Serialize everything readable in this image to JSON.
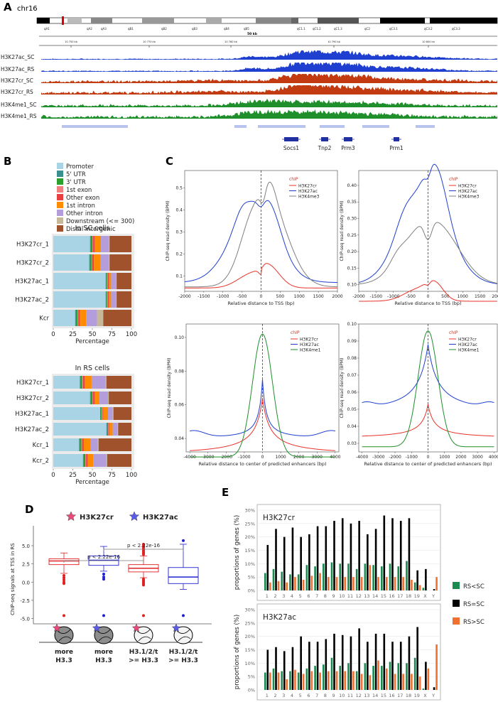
{
  "colors": {
    "blue": "#1f3fd0",
    "orange": "#c23b10",
    "green": "#1e8f2a",
    "gray": "#7f7f7f",
    "red": "#e8332a",
    "promoter": "#a8d4e6",
    "utr5": "#3a8f8f",
    "utr3": "#2ca02c",
    "exon1": "#f08080",
    "otherexon": "#e84040",
    "intron1": "#ff8c00",
    "otherintron": "#b39ddb",
    "downstream": "#c8b89a",
    "distal": "#a0522d",
    "rs_lt_sc": "#1a8a50",
    "rs_eq_sc": "#000000",
    "rs_gt_sc": "#f07030"
  },
  "panel_labels": {
    "a": "A",
    "b": "B",
    "c": "C",
    "d": "D",
    "e": "E"
  },
  "panel_a": {
    "chrom": "chr16",
    "bands": [
      "qA1",
      "qA2",
      "qA3",
      "qB1",
      "qB2",
      "qB3",
      "qB4",
      "qB5",
      "qC1.1",
      "qC1.2",
      "qC1.3",
      "qC2",
      "qC3.1",
      "qC3.2",
      "qC3.3"
    ],
    "scale": "50 kb",
    "ticks": [
      "10 750 kb",
      "10 770 kb",
      "10 780 kb",
      "10 790 kb",
      "10 800 kb"
    ],
    "tracks": [
      "H3K27ac_SC",
      "H3K27ac_RS",
      "H3K27cr_SC",
      "H3K27cr_RS",
      "H3K4me1_SC",
      "H3K4me1_RS"
    ],
    "genes": [
      "Socs1",
      "Tnp2",
      "Prm3",
      "Prm1"
    ]
  },
  "panel_b": {
    "legend": [
      "Promoter",
      "5' UTR",
      "3' UTR",
      "1st exon",
      "Other exon",
      "1st intron",
      "Other intron",
      "Downstream (<= 300)",
      "Distal intergenic"
    ],
    "sc": {
      "title": "In SC cells",
      "rows": [
        {
          "label": "H3K27cr_1",
          "values": [
            47,
            1,
            2,
            1,
            2,
            8,
            10,
            1,
            28
          ]
        },
        {
          "label": "H3K27cr_2",
          "values": [
            46,
            1,
            2,
            1,
            2,
            8,
            11,
            1,
            28
          ]
        },
        {
          "label": "H3K27ac_1",
          "values": [
            67,
            1,
            1,
            1,
            1,
            3,
            6,
            1,
            19
          ]
        },
        {
          "label": "H3K27ac_2",
          "values": [
            67,
            1,
            1,
            1,
            1,
            3,
            6,
            1,
            19
          ]
        },
        {
          "label": "Kcr",
          "values": [
            28,
            1,
            2,
            1,
            2,
            8,
            14,
            8,
            36
          ]
        }
      ],
      "xticks": [
        "0",
        "25",
        "50",
        "75",
        "100"
      ],
      "xlabel": "Percentage"
    },
    "rs": {
      "title": "In RS cells",
      "rows": [
        {
          "label": "H3K27cr_1",
          "values": [
            34,
            1,
            2,
            1,
            2,
            9,
            18,
            1,
            32
          ]
        },
        {
          "label": "H3K27cr_2",
          "values": [
            47,
            1,
            2,
            1,
            2,
            6,
            11,
            1,
            29
          ]
        },
        {
          "label": "H3K27ac_1",
          "values": [
            60,
            1,
            1,
            1,
            1,
            6,
            6,
            1,
            23
          ]
        },
        {
          "label": "H3K27ac_2",
          "values": [
            68,
            1,
            1,
            1,
            1,
            4,
            6,
            1,
            17
          ]
        },
        {
          "label": "Kcr_1",
          "values": [
            33,
            1,
            2,
            1,
            2,
            9,
            9,
            1,
            42
          ]
        },
        {
          "label": "Kcr_2",
          "values": [
            38,
            1,
            2,
            1,
            2,
            7,
            17,
            1,
            31
          ]
        }
      ],
      "xticks": [
        "0",
        "25",
        "50",
        "75",
        "100"
      ],
      "xlabel": "Percentage"
    }
  },
  "panel_c": {
    "ylabel": "ChIP-seq read density (BPM)",
    "legend_title": "chIP",
    "plots": [
      {
        "xlabel": "Relative distance to TSS (bp)",
        "xticks": [
          "-2000",
          "-1500",
          "-1000",
          "-500",
          "0",
          "500",
          "1000",
          "1500",
          "2000"
        ],
        "yticks": [
          "0.1",
          "0.2",
          "0.3",
          "0.4",
          "0.5"
        ],
        "legend": [
          "H3K27cr",
          "H3K27ac",
          "H3K4me3"
        ]
      },
      {
        "xlabel": "Relative distance to TSS (bp)",
        "xticks": [
          "-2000",
          "-1500",
          "-1000",
          "-500",
          "0",
          "500",
          "1000",
          "1500",
          "2000"
        ],
        "yticks": [
          "0.10",
          "0.15",
          "0.20",
          "0.25",
          "0.30",
          "0.35",
          "0.40"
        ],
        "legend": [
          "H3K27cr",
          "H3K27ac",
          "H3K4me3"
        ]
      },
      {
        "xlabel": "Relative distance to center of predicted enhancers (bp)",
        "xticks": [
          "-4000",
          "-3000",
          "-2000",
          "-1000",
          "0",
          "1000",
          "2000",
          "3000",
          "4000"
        ],
        "yticks": [
          "0.04",
          "0.06",
          "0.08",
          "0.10"
        ],
        "legend": [
          "H3K27cr",
          "H3K27ac",
          "H3K4me1"
        ]
      },
      {
        "xlabel": "Relative distance to center of predicted enhancers (bp)",
        "xticks": [
          "-4000",
          "-3000",
          "-2000",
          "-1000",
          "0",
          "1000",
          "2000",
          "3000",
          "4000"
        ],
        "yticks": [
          "0.03",
          "0.04",
          "0.05",
          "0.06",
          "0.07",
          "0.08",
          "0.09",
          "0.10"
        ],
        "legend": [
          "H3K27cr",
          "H3K27ac",
          "H3K4me1"
        ]
      }
    ]
  },
  "panel_d": {
    "legend": [
      "H3K27cr",
      "H3K27ac"
    ],
    "ylabel": "ChIP-seq signals at TSS in RS",
    "yticks": [
      "5.0",
      "2.5",
      "0.0",
      "-2.5",
      "-5.0"
    ],
    "p1": "p < 2.22e-16",
    "p2": "p < 2.22e-16",
    "groups": [
      {
        "line1": "more",
        "line2": "H3.3"
      },
      {
        "line1": "more",
        "line2": "H3.3"
      },
      {
        "line1": "H3.1/2/t",
        "line2": ">= H3.3"
      },
      {
        "line1": "H3.1/2/t",
        "line2": ">= H3.3"
      }
    ]
  },
  "panel_e": {
    "ylabel": "proportions of genes (%)",
    "yticks": [
      "0%",
      "5%",
      "10%",
      "15%",
      "20%",
      "25%",
      "30%"
    ],
    "categories": [
      "1",
      "2",
      "3",
      "4",
      "5",
      "6",
      "7",
      "8",
      "9",
      "10",
      "11",
      "12",
      "13",
      "14",
      "15",
      "16",
      "17",
      "18",
      "19",
      "X",
      "Y"
    ],
    "legend": [
      "RS<SC",
      "RS=SC",
      "RS>SC"
    ],
    "charts": [
      {
        "title": "H3K27cr",
        "series": [
          {
            "name": "RS<SC",
            "values": [
              6.5,
              8,
              7,
              6,
              6,
              9.5,
              9,
              10,
              10.5,
              10,
              10,
              8,
              10,
              9.5,
              9,
              10,
              9,
              11,
              3,
              1,
              0
            ]
          },
          {
            "name": "RS=SC",
            "values": [
              17,
              23,
              20,
              23.5,
              20,
              21,
              24,
              24,
              26,
              27,
              25,
              26,
              21,
              23,
              28,
              27,
              26,
              27,
              7.5,
              8,
              0.5
            ]
          },
          {
            "name": "RS>SC",
            "values": [
              3,
              3.5,
              3,
              5,
              4,
              5.5,
              6.5,
              5,
              5,
              5,
              5,
              5,
              9.5,
              5,
              5,
              5,
              5,
              4,
              2,
              0,
              5
            ]
          }
        ]
      },
      {
        "title": "H3K27ac",
        "series": [
          {
            "name": "RS<SC",
            "values": [
              6.5,
              8,
              7,
              7,
              6.5,
              8,
              9,
              9.5,
              12,
              9,
              10,
              7,
              10,
              9,
              9,
              10.5,
              10,
              10,
              12,
              0.5,
              0
            ]
          },
          {
            "name": "RS=SC",
            "values": [
              15,
              16,
              14.5,
              16,
              20,
              18,
              18,
              19,
              21,
              20.5,
              20,
              23,
              18,
              21,
              21,
              18,
              18,
              20,
              23.5,
              10.5,
              1
            ]
          },
          {
            "name": "RS>SC",
            "values": [
              6.5,
              6.5,
              4,
              7.5,
              6,
              7,
              6.5,
              7,
              7,
              7,
              7,
              6,
              5.5,
              11,
              8,
              6,
              6,
              6,
              5,
              8,
              17
            ]
          }
        ]
      }
    ]
  }
}
